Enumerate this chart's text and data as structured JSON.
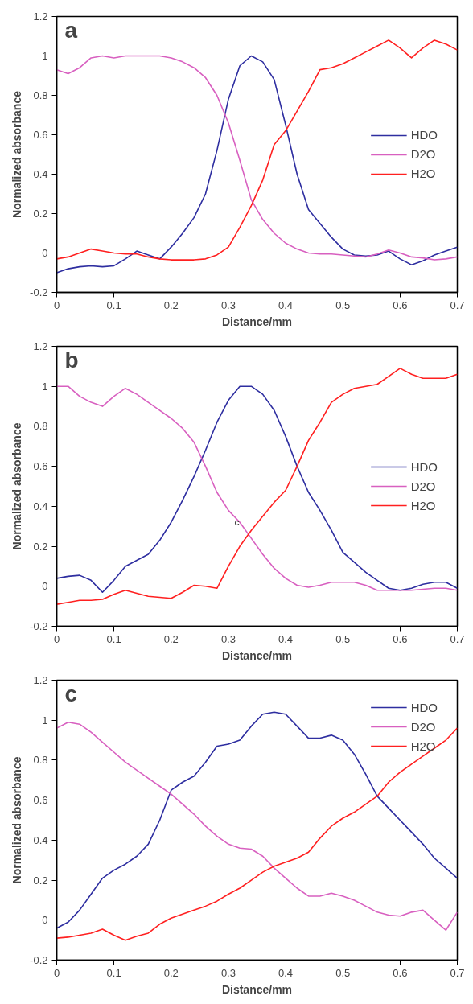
{
  "chart_data": [
    {
      "type": "line",
      "annotations": [
        "a"
      ],
      "xlabel": "Distance/mm",
      "ylabel": "Normalized absorbance",
      "x": [
        0,
        0.02,
        0.04,
        0.06,
        0.08,
        0.1,
        0.12,
        0.14,
        0.16,
        0.18,
        0.2,
        0.22,
        0.24,
        0.26,
        0.28,
        0.3,
        0.32,
        0.34,
        0.36,
        0.38,
        0.4,
        0.42,
        0.44,
        0.46,
        0.48,
        0.5,
        0.52,
        0.54,
        0.56,
        0.58,
        0.6,
        0.62,
        0.64,
        0.66,
        0.68,
        0.7
      ],
      "series": [
        {
          "name": "HDO",
          "color": "#2e2ea0",
          "values": [
            -0.1,
            -0.08,
            -0.07,
            -0.065,
            -0.07,
            -0.065,
            -0.03,
            0.01,
            -0.01,
            -0.03,
            0.03,
            0.1,
            0.18,
            0.3,
            0.52,
            0.78,
            0.95,
            1.0,
            0.97,
            0.88,
            0.65,
            0.4,
            0.22,
            0.15,
            0.08,
            0.02,
            -0.01,
            -0.015,
            -0.01,
            0.01,
            -0.03,
            -0.06,
            -0.04,
            -0.01,
            0.01,
            0.03
          ]
        },
        {
          "name": "D2O",
          "color": "#d860c0",
          "values": [
            0.93,
            0.91,
            0.94,
            0.99,
            1.0,
            0.99,
            1.0,
            1.0,
            1.0,
            1.0,
            0.99,
            0.97,
            0.94,
            0.89,
            0.8,
            0.66,
            0.47,
            0.27,
            0.17,
            0.1,
            0.05,
            0.02,
            0.0,
            -0.005,
            -0.005,
            -0.01,
            -0.015,
            -0.02,
            -0.005,
            0.015,
            0.0,
            -0.02,
            -0.025,
            -0.035,
            -0.03,
            -0.02
          ]
        },
        {
          "name": "H2O",
          "color": "#ff2020",
          "values": [
            -0.03,
            -0.02,
            0.0,
            0.02,
            0.01,
            0.0,
            -0.005,
            -0.005,
            -0.02,
            -0.03,
            -0.035,
            -0.035,
            -0.035,
            -0.03,
            -0.01,
            0.03,
            0.13,
            0.24,
            0.37,
            0.55,
            0.62,
            0.72,
            0.82,
            0.93,
            0.94,
            0.96,
            0.99,
            1.02,
            1.05,
            1.08,
            1.04,
            0.99,
            1.04,
            1.08,
            1.06,
            1.03
          ]
        }
      ],
      "xlim": [
        0,
        0.7
      ],
      "xticks": [
        0,
        0.1,
        0.2,
        0.3,
        0.4,
        0.5,
        0.6,
        0.7
      ],
      "ylim": [
        -0.2,
        1.2
      ],
      "yticks": [
        -0.2,
        0,
        0.2,
        0.4,
        0.6,
        0.8,
        1,
        1.2
      ],
      "grid": false,
      "legend": "right",
      "marker": "none",
      "line_style": "solid"
    },
    {
      "type": "line",
      "annotations": [
        "b",
        {
          "text": "c",
          "x": 0.315,
          "y": 0.32
        }
      ],
      "xlabel": "Distance/mm",
      "ylabel": "Normalized absorbance",
      "x": [
        0,
        0.02,
        0.04,
        0.06,
        0.08,
        0.1,
        0.12,
        0.14,
        0.16,
        0.18,
        0.2,
        0.22,
        0.24,
        0.26,
        0.28,
        0.3,
        0.32,
        0.34,
        0.36,
        0.38,
        0.4,
        0.42,
        0.44,
        0.46,
        0.48,
        0.5,
        0.52,
        0.54,
        0.56,
        0.58,
        0.6,
        0.62,
        0.64,
        0.66,
        0.68,
        0.7
      ],
      "series": [
        {
          "name": "HDO",
          "color": "#2e2ea0",
          "values": [
            0.04,
            0.05,
            0.055,
            0.03,
            -0.03,
            0.03,
            0.1,
            0.13,
            0.16,
            0.23,
            0.32,
            0.43,
            0.55,
            0.68,
            0.82,
            0.93,
            1.0,
            1.0,
            0.96,
            0.88,
            0.75,
            0.6,
            0.47,
            0.38,
            0.28,
            0.17,
            0.12,
            0.07,
            0.03,
            -0.01,
            -0.02,
            -0.01,
            0.01,
            0.02,
            0.02,
            -0.01
          ]
        },
        {
          "name": "D2O",
          "color": "#d860c0",
          "values": [
            1.0,
            1.0,
            0.95,
            0.92,
            0.9,
            0.95,
            0.99,
            0.96,
            0.92,
            0.88,
            0.84,
            0.79,
            0.72,
            0.6,
            0.47,
            0.38,
            0.32,
            0.24,
            0.16,
            0.09,
            0.04,
            0.005,
            -0.005,
            0.005,
            0.02,
            0.02,
            0.02,
            0.005,
            -0.02,
            -0.02,
            -0.02,
            -0.02,
            -0.015,
            -0.01,
            -0.01,
            -0.02
          ]
        },
        {
          "name": "H2O",
          "color": "#ff2020",
          "values": [
            -0.09,
            -0.08,
            -0.07,
            -0.07,
            -0.065,
            -0.04,
            -0.02,
            -0.035,
            -0.05,
            -0.055,
            -0.06,
            -0.03,
            0.005,
            0.0,
            -0.01,
            0.1,
            0.2,
            0.28,
            0.35,
            0.42,
            0.48,
            0.6,
            0.73,
            0.82,
            0.92,
            0.96,
            0.99,
            1.0,
            1.01,
            1.05,
            1.09,
            1.06,
            1.04,
            1.04,
            1.04,
            1.06
          ]
        }
      ],
      "xlim": [
        0,
        0.7
      ],
      "xticks": [
        0,
        0.1,
        0.2,
        0.3,
        0.4,
        0.5,
        0.6,
        0.7
      ],
      "ylim": [
        -0.2,
        1.2
      ],
      "yticks": [
        -0.2,
        0,
        0.2,
        0.4,
        0.6,
        0.8,
        1,
        1.2
      ],
      "grid": false,
      "legend": "right",
      "marker": "none",
      "line_style": "solid"
    },
    {
      "type": "line",
      "annotations": [
        "c"
      ],
      "xlabel": "Distance/mm",
      "ylabel": "Normalized absorbance",
      "x": [
        0,
        0.02,
        0.04,
        0.06,
        0.08,
        0.1,
        0.12,
        0.14,
        0.16,
        0.18,
        0.2,
        0.22,
        0.24,
        0.26,
        0.28,
        0.3,
        0.32,
        0.34,
        0.36,
        0.38,
        0.4,
        0.42,
        0.44,
        0.46,
        0.48,
        0.5,
        0.52,
        0.54,
        0.56,
        0.58,
        0.6,
        0.62,
        0.64,
        0.66,
        0.68,
        0.7
      ],
      "series": [
        {
          "name": "HDO",
          "color": "#2e2ea0",
          "values": [
            -0.04,
            -0.01,
            0.05,
            0.13,
            0.21,
            0.25,
            0.28,
            0.32,
            0.38,
            0.5,
            0.65,
            0.69,
            0.72,
            0.79,
            0.87,
            0.88,
            0.9,
            0.97,
            1.03,
            1.04,
            1.03,
            0.97,
            0.91,
            0.91,
            0.925,
            0.9,
            0.83,
            0.73,
            0.62,
            0.56,
            0.5,
            0.44,
            0.38,
            0.31,
            0.26,
            0.21
          ]
        },
        {
          "name": "D2O",
          "color": "#d860c0",
          "values": [
            0.96,
            0.99,
            0.98,
            0.94,
            0.89,
            0.84,
            0.79,
            0.75,
            0.71,
            0.67,
            0.63,
            0.58,
            0.53,
            0.47,
            0.42,
            0.38,
            0.36,
            0.355,
            0.32,
            0.26,
            0.21,
            0.16,
            0.12,
            0.12,
            0.135,
            0.12,
            0.1,
            0.07,
            0.04,
            0.025,
            0.02,
            0.04,
            0.05,
            0.0,
            -0.05,
            0.04
          ]
        },
        {
          "name": "H2O",
          "color": "#ff2020",
          "values": [
            -0.09,
            -0.085,
            -0.075,
            -0.065,
            -0.045,
            -0.075,
            -0.1,
            -0.08,
            -0.065,
            -0.02,
            0.01,
            0.03,
            0.05,
            0.07,
            0.095,
            0.13,
            0.16,
            0.2,
            0.24,
            0.27,
            0.29,
            0.31,
            0.34,
            0.41,
            0.47,
            0.51,
            0.54,
            0.58,
            0.62,
            0.69,
            0.74,
            0.78,
            0.82,
            0.86,
            0.9,
            0.96
          ]
        }
      ],
      "xlim": [
        0,
        0.7
      ],
      "xticks": [
        0,
        0.1,
        0.2,
        0.3,
        0.4,
        0.5,
        0.6,
        0.7
      ],
      "ylim": [
        -0.2,
        1.2
      ],
      "yticks": [
        -0.2,
        0,
        0.2,
        0.4,
        0.6,
        0.8,
        1,
        1.2
      ],
      "grid": false,
      "legend": "top right",
      "marker": "none",
      "line_style": "solid"
    }
  ]
}
